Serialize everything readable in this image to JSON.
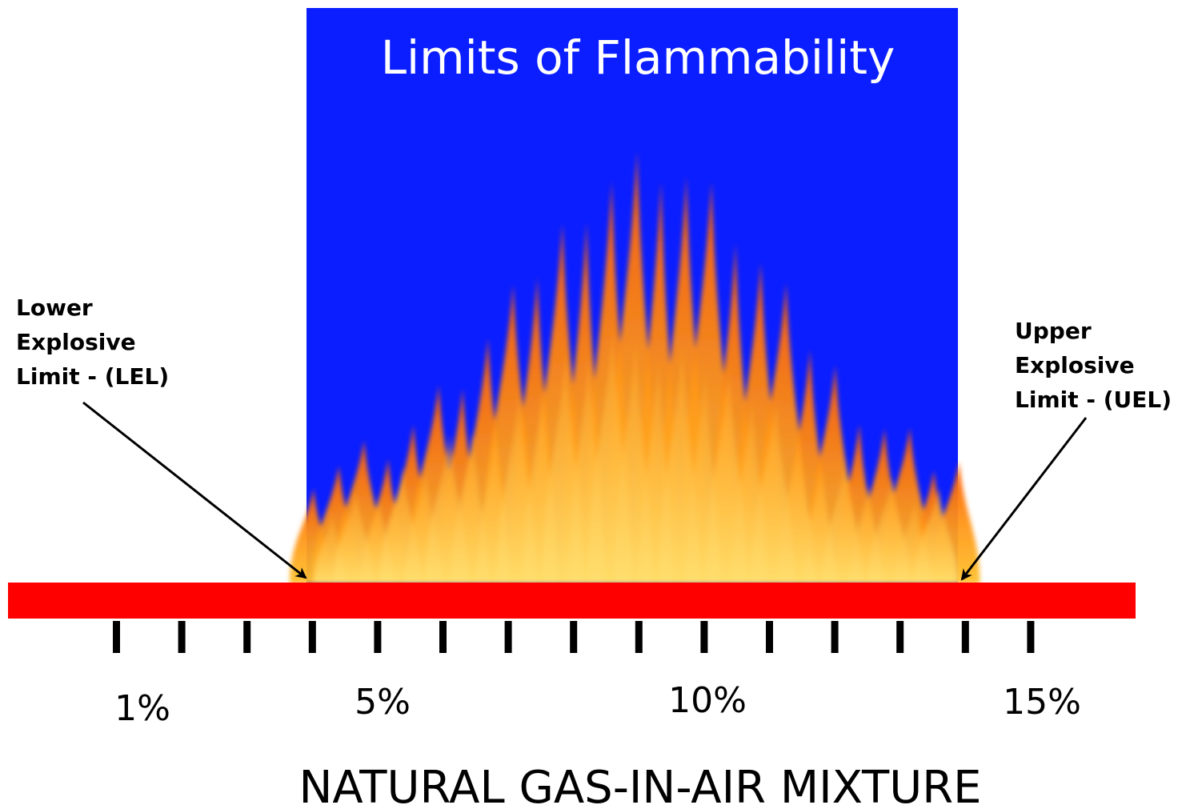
{
  "title": "Limits of Flammability",
  "lel_label": [
    "Lower",
    "Explosive",
    "Limit - (LEL)"
  ],
  "uel_label": [
    "Upper",
    "Explosive",
    "Limit - (UEL)"
  ],
  "tick_labels": [
    "1%",
    "5%",
    "10%",
    "15%"
  ],
  "axis_title": "NATURAL GAS-IN-AIR MIXTURE",
  "colors": {
    "flammable_zone": "#0a1eff",
    "bar": "#ff0000",
    "flame_outer": "#ff6a00",
    "flame_inner": "#ffc22e"
  },
  "chart_data": {
    "type": "range",
    "x_unit": "% gas in air",
    "x_ticks": [
      1,
      2,
      3,
      4,
      5,
      6,
      7,
      8,
      9,
      10,
      11,
      12,
      13,
      14,
      15
    ],
    "labeled_ticks": [
      1,
      5,
      10,
      15
    ],
    "lower_explosive_limit": 4,
    "upper_explosive_limit": 14
  }
}
